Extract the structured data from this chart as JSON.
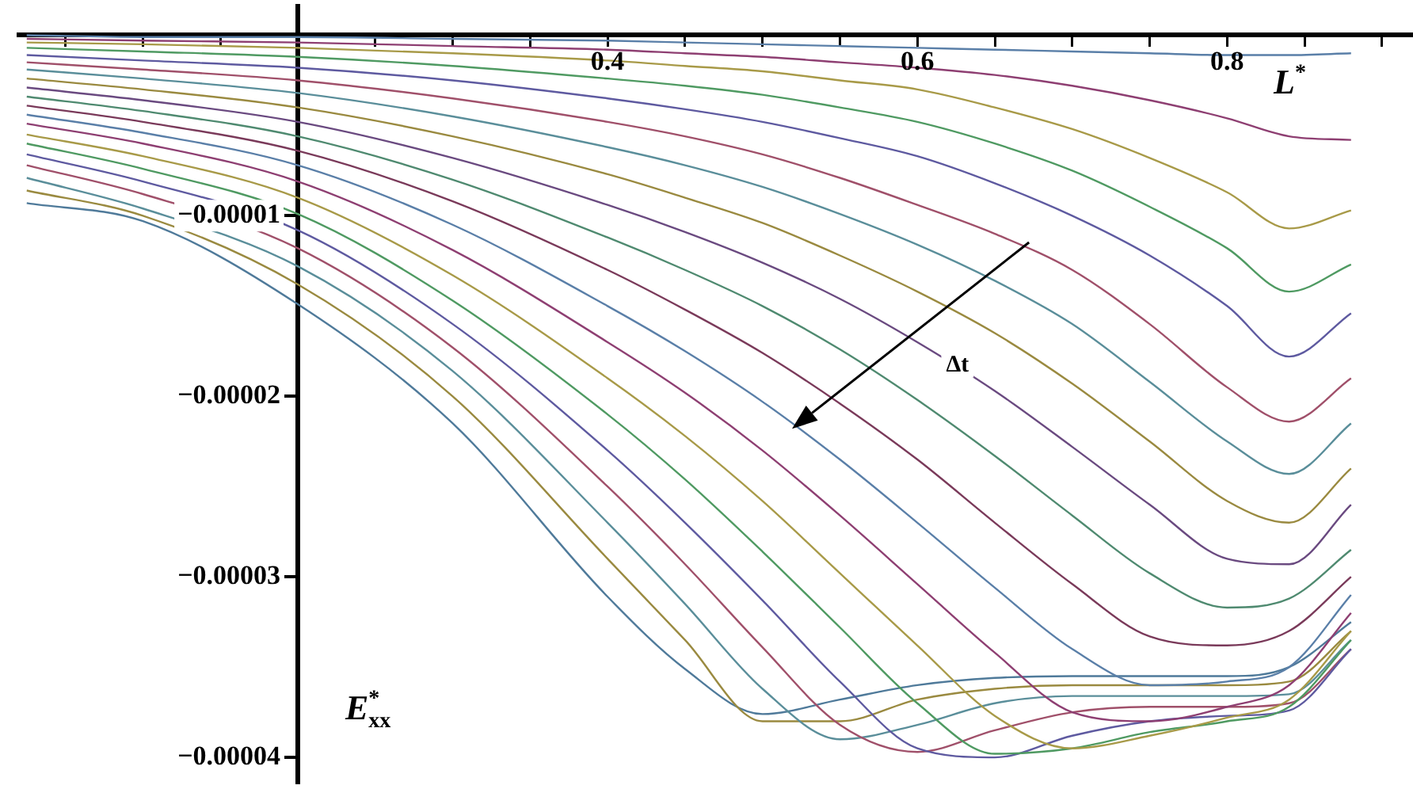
{
  "chart_data": {
    "type": "line",
    "xlabel": "L$^{*}$",
    "ylabel": "E$^{*}$$_{xx}$",
    "annotations": [
      "Δt"
    ],
    "x": [
      0.025,
      0.1,
      0.2,
      0.3,
      0.4,
      0.45,
      0.5,
      0.55,
      0.6,
      0.65,
      0.7,
      0.75,
      0.8,
      0.84,
      0.88
    ],
    "xlim": [
      0.02,
      0.92
    ],
    "ylim": [
      -4.14e-05,
      1.6e-06
    ],
    "xticks": [
      {
        "value": 0.05,
        "label": null
      },
      {
        "value": 0.1,
        "label": null
      },
      {
        "value": 0.15,
        "label": null
      },
      {
        "value": 0.25,
        "label": null
      },
      {
        "value": 0.3,
        "label": null
      },
      {
        "value": 0.35,
        "label": null
      },
      0.4,
      {
        "value": 0.45,
        "label": null
      },
      {
        "value": 0.5,
        "label": null
      },
      {
        "value": 0.55,
        "label": null
      },
      0.6,
      {
        "value": 0.65,
        "label": null
      },
      {
        "value": 0.7,
        "label": null
      },
      {
        "value": 0.75,
        "label": null
      },
      0.8,
      {
        "value": 0.85,
        "label": null
      },
      {
        "value": 0.9,
        "label": null
      }
    ],
    "yticks": [
      {
        "value": -1e-05,
        "label": "−0.00001"
      },
      {
        "value": -2e-05,
        "label": "−0.00002"
      },
      {
        "value": -3e-05,
        "label": "−0.00003"
      },
      {
        "value": -4e-05,
        "label": "−0.00004"
      }
    ],
    "legend": false,
    "grid": false,
    "marker": "none",
    "line_style": "solid",
    "series": [
      {
        "color": "#5a7fa8",
        "values": [
          0,
          -1e-07,
          -1e-07,
          -2e-07,
          -3e-07,
          -4e-07,
          -5e-07,
          -6e-07,
          -7e-07,
          -8e-07,
          -9e-07,
          -1e-06,
          -1.1e-06,
          -1.1e-06,
          -1e-06
        ]
      },
      {
        "color": "#8e3f72",
        "values": [
          -2e-07,
          -3e-07,
          -4e-07,
          -6e-07,
          -8e-07,
          -1e-06,
          -1.2e-06,
          -1.5e-06,
          -1.8e-06,
          -2.2e-06,
          -2.8e-06,
          -3.6e-06,
          -4.6e-06,
          -5.6e-06,
          -5.8e-06
        ]
      },
      {
        "color": "#a89a48",
        "values": [
          -4e-07,
          -5e-07,
          -7e-07,
          -1e-06,
          -1.4e-06,
          -1.7e-06,
          -2e-06,
          -2.5e-06,
          -3e-06,
          -4e-06,
          -5.2e-06,
          -6.8e-06,
          -8.7e-06,
          -1.07e-05,
          -9.7e-06
        ]
      },
      {
        "color": "#4f9a62",
        "values": [
          -7e-07,
          -9e-07,
          -1.2e-06,
          -1.7e-06,
          -2.4e-06,
          -2.8e-06,
          -3.3e-06,
          -4e-06,
          -4.8e-06,
          -6e-06,
          -7.5e-06,
          -9.5e-06,
          -1.18e-05,
          -1.42e-05,
          -1.27e-05
        ]
      },
      {
        "color": "#5e5aa0",
        "values": [
          -1.1e-06,
          -1.4e-06,
          -1.8e-06,
          -2.5e-06,
          -3.5e-06,
          -4.1e-06,
          -4.8e-06,
          -5.7e-06,
          -6.7e-06,
          -8.2e-06,
          -1e-05,
          -1.22e-05,
          -1.5e-05,
          -1.78e-05,
          -1.54e-05
        ]
      },
      {
        "color": "#a0506a",
        "values": [
          -1.5e-06,
          -1.9e-06,
          -2.5e-06,
          -3.5e-06,
          -4.8e-06,
          -5.6e-06,
          -6.6e-06,
          -7.9e-06,
          -9.4e-06,
          -1.1e-05,
          -1.3e-05,
          -1.6e-05,
          -1.95e-05,
          -2.14e-05,
          -1.9e-05
        ]
      },
      {
        "color": "#5a8e9a",
        "values": [
          -1.9e-06,
          -2.4e-06,
          -3.2e-06,
          -4.5e-06,
          -6.2e-06,
          -7.2e-06,
          -8.4e-06,
          -9.9e-06,
          -1.16e-05,
          -1.36e-05,
          -1.6e-05,
          -1.92e-05,
          -2.25e-05,
          -2.43e-05,
          -2.15e-05
        ]
      },
      {
        "color": "#9a8a40",
        "values": [
          -2.4e-06,
          -3e-06,
          -4e-06,
          -5.6e-06,
          -7.7e-06,
          -9e-06,
          -1.04e-05,
          -1.22e-05,
          -1.42e-05,
          -1.65e-05,
          -1.93e-05,
          -2.25e-05,
          -2.58e-05,
          -2.7e-05,
          -2.4e-05
        ]
      },
      {
        "color": "#6a4a80",
        "values": [
          -2.9e-06,
          -3.6e-06,
          -4.8e-06,
          -6.8e-06,
          -9.4e-06,
          -1.09e-05,
          -1.26e-05,
          -1.46e-05,
          -1.7e-05,
          -1.97e-05,
          -2.28e-05,
          -2.6e-05,
          -2.9e-05,
          -2.93e-05,
          -2.6e-05
        ]
      },
      {
        "color": "#4f8a70",
        "values": [
          -3.4e-06,
          -4.2e-06,
          -5.6e-06,
          -8e-06,
          -1.12e-05,
          -1.3e-05,
          -1.5e-05,
          -1.74e-05,
          -2.02e-05,
          -2.33e-05,
          -2.66e-05,
          -2.98e-05,
          -3.17e-05,
          -3.12e-05,
          -2.85e-05
        ]
      },
      {
        "color": "#7a3a5a",
        "values": [
          -3.9e-06,
          -4.8e-06,
          -6.4e-06,
          -9.2e-06,
          -1.3e-05,
          -1.52e-05,
          -1.76e-05,
          -2.04e-05,
          -2.35e-05,
          -2.7e-05,
          -3.04e-05,
          -3.33e-05,
          -3.38e-05,
          -3.3e-05,
          -3e-05
        ]
      },
      {
        "color": "#5a7fa8",
        "values": [
          -4.4e-06,
          -5.4e-06,
          -7.2e-06,
          -1.05e-05,
          -1.5e-05,
          -1.75e-05,
          -2.03e-05,
          -2.35e-05,
          -2.7e-05,
          -3.06e-05,
          -3.4e-05,
          -3.6e-05,
          -3.58e-05,
          -3.5e-05,
          -3.1e-05
        ]
      },
      {
        "color": "#8e3f72",
        "values": [
          -4.9e-06,
          -6e-06,
          -8.1e-06,
          -1.19e-05,
          -1.7e-05,
          -1.98e-05,
          -2.3e-05,
          -2.66e-05,
          -3.04e-05,
          -3.42e-05,
          -3.75e-05,
          -3.8e-05,
          -3.72e-05,
          -3.6e-05,
          -3.2e-05
        ]
      },
      {
        "color": "#a89a48",
        "values": [
          -5.5e-06,
          -6.7e-06,
          -9e-06,
          -1.33e-05,
          -1.9e-05,
          -2.22e-05,
          -2.58e-05,
          -2.98e-05,
          -3.38e-05,
          -3.77e-05,
          -3.95e-05,
          -3.88e-05,
          -3.78e-05,
          -3.68e-05,
          -3.3e-05
        ]
      },
      {
        "color": "#4f9a62",
        "values": [
          -6e-06,
          -7.4e-06,
          -9.9e-06,
          -1.47e-05,
          -2.1e-05,
          -2.46e-05,
          -2.86e-05,
          -3.28e-05,
          -3.7e-05,
          -3.98e-05,
          -3.95e-05,
          -3.86e-05,
          -3.8e-05,
          -3.72e-05,
          -3.35e-05
        ]
      },
      {
        "color": "#5e5aa0",
        "values": [
          -6.6e-06,
          -8.1e-06,
          -1.08e-05,
          -1.6e-05,
          -2.3e-05,
          -2.7e-05,
          -3.13e-05,
          -3.58e-05,
          -3.95e-05,
          -4e-05,
          -3.88e-05,
          -3.8e-05,
          -3.77e-05,
          -3.74e-05,
          -3.4e-05
        ]
      },
      {
        "color": "#a0506a",
        "values": [
          -7.2e-06,
          -8.8e-06,
          -1.18e-05,
          -1.73e-05,
          -2.5e-05,
          -2.93e-05,
          -3.39e-05,
          -3.82e-05,
          -3.97e-05,
          -3.85e-05,
          -3.75e-05,
          -3.72e-05,
          -3.72e-05,
          -3.7e-05,
          -3.4e-05
        ]
      },
      {
        "color": "#5a8e9a",
        "values": [
          -7.9e-06,
          -9.6e-06,
          -1.28e-05,
          -1.86e-05,
          -2.7e-05,
          -3.15e-05,
          -3.62e-05,
          -3.9e-05,
          -3.82e-05,
          -3.7e-05,
          -3.66e-05,
          -3.66e-05,
          -3.66e-05,
          -3.65e-05,
          -3.35e-05
        ]
      },
      {
        "color": "#9a8a40",
        "values": [
          -8.6e-06,
          -1e-05,
          -1.38e-05,
          -2e-05,
          -2.9e-05,
          -3.35e-05,
          -3.8e-05,
          -3.8e-05,
          -3.68e-05,
          -3.62e-05,
          -3.6e-05,
          -3.6e-05,
          -3.6e-05,
          -3.58e-05,
          -3.3e-05
        ]
      },
      {
        "color": "#4f7a9a",
        "values": [
          -9.3e-06,
          -1.03e-05,
          -1.49e-05,
          -2.15e-05,
          -3.11e-05,
          -3.51e-05,
          -3.76e-05,
          -3.68e-05,
          -3.6e-05,
          -3.56e-05,
          -3.55e-05,
          -3.55e-05,
          -3.55e-05,
          -3.5e-05,
          -3.25e-05
        ]
      }
    ]
  }
}
